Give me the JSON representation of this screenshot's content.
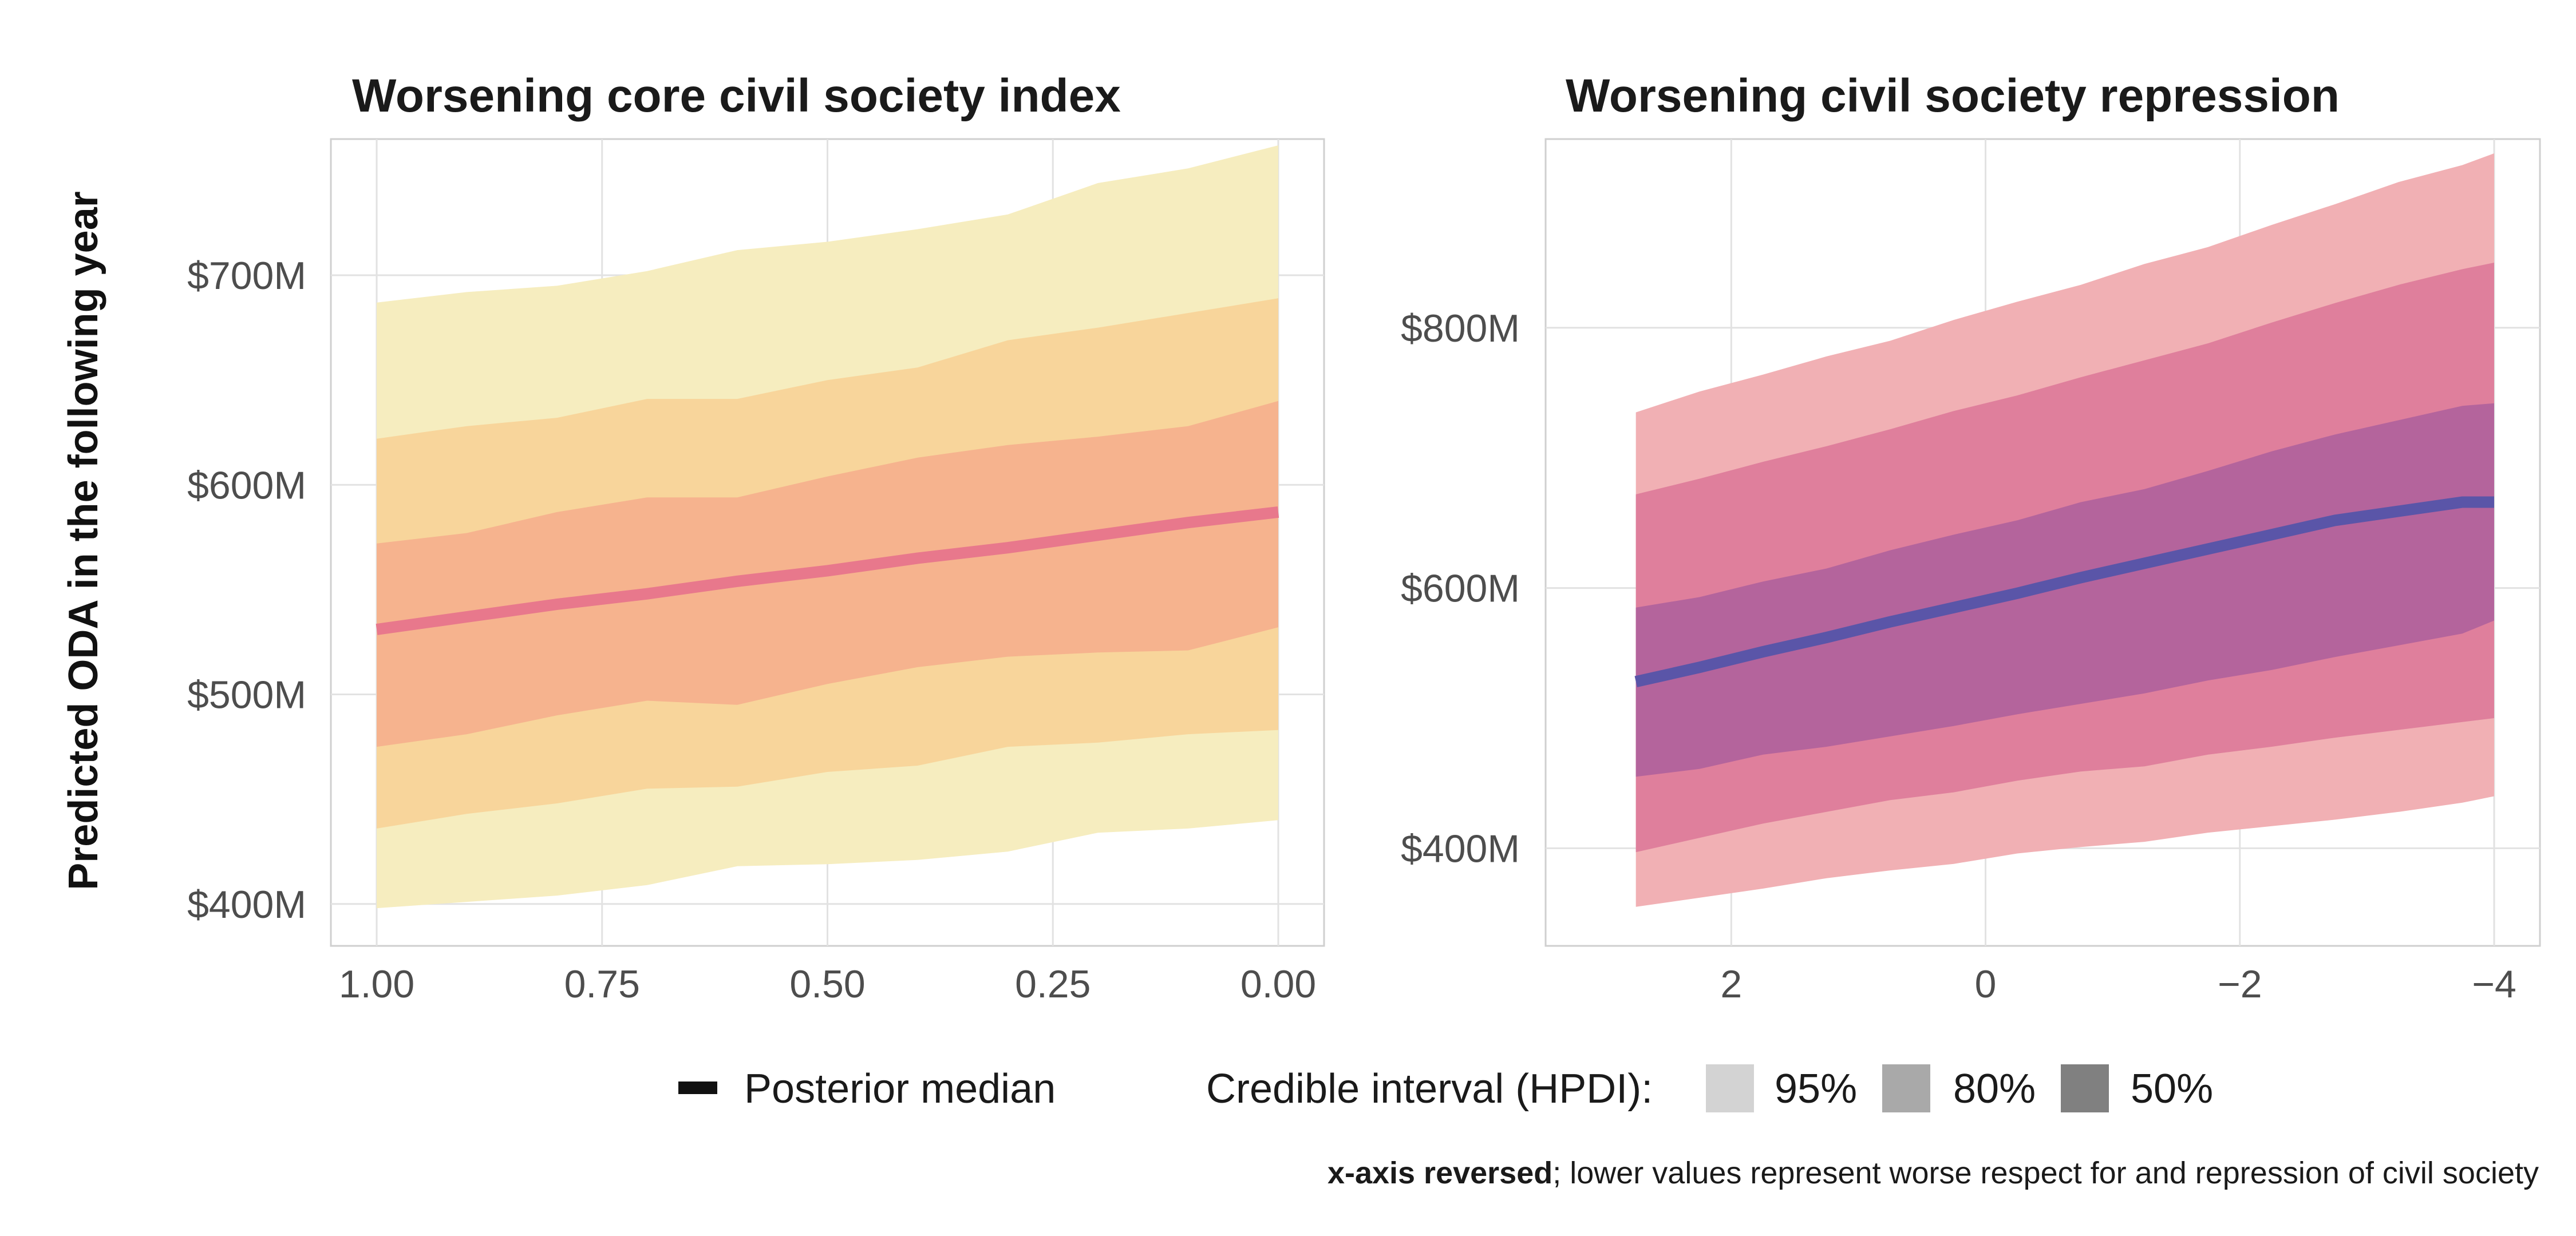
{
  "y_axis_label": "Predicted ODA in the following year",
  "legend": {
    "median_label": "Posterior median",
    "interval_title": "Credible interval (HPDI):",
    "levels": [
      "95%",
      "80%",
      "50%"
    ],
    "level_swatch_colors": [
      "#d3d3d3",
      "#a9a9a9",
      "#808080"
    ],
    "median_swatch_color": "#111111"
  },
  "caption": {
    "bold": "x-axis reversed",
    "rest": "; lower values represent worse respect for and repression of civil society"
  },
  "chart_data": [
    {
      "type": "area",
      "title": "Worsening core civil society index",
      "x_reversed": true,
      "xlim": [
        0,
        1
      ],
      "ylim": [
        380,
        765
      ],
      "x_ticks": [
        1.0,
        0.75,
        0.5,
        0.25,
        0.0
      ],
      "x_tick_labels": [
        "1.00",
        "0.75",
        "0.50",
        "0.25",
        "0.00"
      ],
      "y_ticks": [
        400,
        500,
        600,
        700
      ],
      "y_tick_labels": [
        "$400M",
        "$500M",
        "$600M",
        "$700M"
      ],
      "grid": true,
      "colors": {
        "median": "#e8788c",
        "band_95": "#f6edbf",
        "band_80": "#f8d59b",
        "band_50": "#f6b38e"
      },
      "x": [
        1.0,
        0.9,
        0.8,
        0.7,
        0.6,
        0.5,
        0.4,
        0.3,
        0.2,
        0.1,
        0.0
      ],
      "series": [
        {
          "name": "Posterior median",
          "values": [
            531,
            537,
            543,
            548,
            554,
            559,
            565,
            570,
            576,
            582,
            587
          ]
        },
        {
          "name": "95%",
          "lower": [
            398,
            401,
            404,
            409,
            418,
            419,
            421,
            425,
            434,
            436,
            440
          ],
          "upper": [
            687,
            692,
            695,
            702,
            712,
            716,
            722,
            729,
            744,
            751,
            762
          ]
        },
        {
          "name": "80%",
          "lower": [
            436,
            443,
            448,
            455,
            456,
            463,
            466,
            475,
            477,
            481,
            483
          ],
          "upper": [
            622,
            628,
            632,
            641,
            641,
            650,
            656,
            669,
            675,
            682,
            689
          ]
        },
        {
          "name": "50%",
          "lower": [
            475,
            481,
            490,
            497,
            495,
            505,
            513,
            518,
            520,
            521,
            532
          ],
          "upper": [
            572,
            577,
            587,
            594,
            594,
            604,
            613,
            619,
            623,
            628,
            640
          ]
        }
      ]
    },
    {
      "type": "area",
      "title": "Worsening civil society repression",
      "x_reversed": true,
      "xlim": [
        -4.0,
        3.1
      ],
      "ylim": [
        325,
        945
      ],
      "x_ticks": [
        2,
        0,
        -2,
        -4
      ],
      "x_tick_labels": [
        "2",
        "0",
        "−2",
        "−4"
      ],
      "y_ticks": [
        400,
        600,
        800
      ],
      "y_tick_labels": [
        "$400M",
        "$600M",
        "$800M"
      ],
      "grid": true,
      "colors": {
        "median": "#5a55a8",
        "band_95": "#f1b0b4",
        "band_80": "#df7f9c",
        "band_50": "#b4649c"
      },
      "x": [
        2.75,
        2.25,
        1.75,
        1.25,
        0.75,
        0.25,
        -0.25,
        -0.75,
        -1.25,
        -1.75,
        -2.25,
        -2.75,
        -3.25,
        -3.75,
        -4.0
      ],
      "series": [
        {
          "name": "Posterior median",
          "values": [
            528,
            539,
            551,
            562,
            574,
            585,
            596,
            608,
            619,
            630,
            641,
            652,
            659,
            666,
            666
          ]
        },
        {
          "name": "95%",
          "lower": [
            355,
            362,
            369,
            377,
            383,
            388,
            396,
            401,
            405,
            412,
            417,
            422,
            428,
            435,
            440
          ],
          "upper": [
            735,
            751,
            764,
            778,
            790,
            806,
            820,
            833,
            849,
            862,
            879,
            895,
            912,
            925,
            934
          ]
        },
        {
          "name": "80%",
          "lower": [
            397,
            408,
            419,
            428,
            437,
            443,
            452,
            459,
            463,
            472,
            478,
            485,
            491,
            497,
            500
          ]
        },
        {
          "name": "50%",
          "lower": [
            455,
            461,
            472,
            478,
            486,
            494,
            503,
            511,
            519,
            529,
            537,
            547,
            556,
            565,
            575
          ],
          "upper": [
            585,
            593,
            605,
            615,
            629,
            641,
            652,
            666,
            676,
            690,
            705,
            718,
            729,
            740,
            742
          ]
        }
      ]
    }
  ]
}
